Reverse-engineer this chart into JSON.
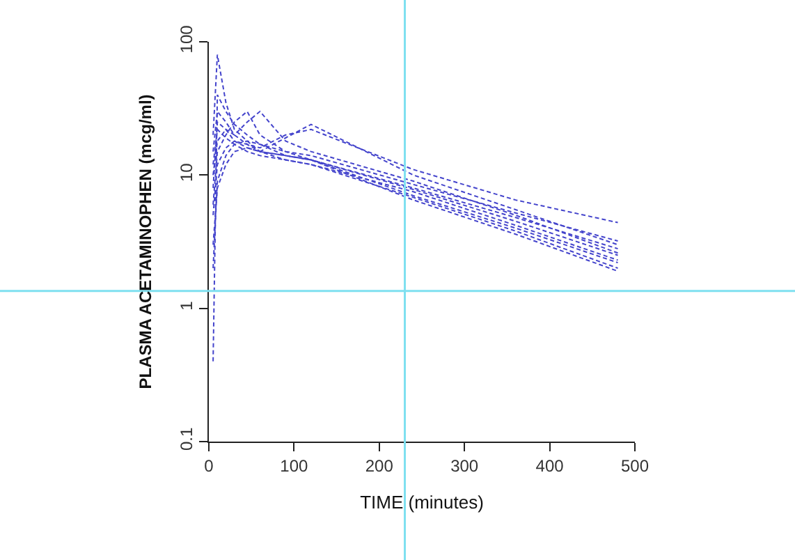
{
  "chart_data": {
    "type": "line",
    "xlabel": "TIME (minutes)",
    "ylabel": "PLASMA ACETAMINOPHEN (mcg/ml)",
    "x": [
      5,
      10,
      20,
      30,
      45,
      60,
      90,
      120,
      240,
      360,
      480
    ],
    "log": "y",
    "xlim": [
      0,
      500
    ],
    "ylim": [
      0.1,
      100
    ],
    "xticks": [
      0,
      100,
      200,
      300,
      400,
      500
    ],
    "yticks": [
      {
        "value": 0.1,
        "label": "0.1"
      },
      1,
      10,
      100
    ],
    "marker": "none",
    "line_style": "dashed",
    "series": [
      {
        "color": "#4444cc",
        "values": [
          20,
          80,
          35,
          22,
          18,
          15,
          13,
          12,
          7.5,
          4.2,
          2.3
        ]
      },
      {
        "color": "#4444cc",
        "values": [
          0.4,
          40,
          30,
          24,
          20,
          17,
          14,
          13,
          8,
          4.8,
          2.8
        ]
      },
      {
        "color": "#4444cc",
        "values": [
          8,
          25,
          22,
          20,
          25,
          30,
          18,
          15,
          9,
          5,
          2.6
        ]
      },
      {
        "color": "#4444cc",
        "values": [
          5,
          12,
          16,
          18,
          17,
          16,
          20,
          22,
          11,
          6.5,
          4.4
        ]
      },
      {
        "color": "#4444cc",
        "values": [
          15,
          30,
          25,
          20,
          17,
          15,
          14,
          13,
          7,
          4,
          2.2
        ]
      },
      {
        "color": "#4444cc",
        "values": [
          3,
          8,
          12,
          15,
          16,
          15,
          14,
          13,
          7.8,
          4.5,
          2.5
        ]
      },
      {
        "color": "#4444cc",
        "values": [
          10,
          18,
          22,
          18,
          16,
          15,
          19,
          24,
          10,
          5.5,
          3.0
        ]
      },
      {
        "color": "#4444cc",
        "values": [
          6,
          15,
          20,
          25,
          30,
          20,
          15,
          13,
          6.5,
          3.6,
          1.9
        ]
      },
      {
        "color": "#4444cc",
        "values": [
          2,
          9,
          14,
          17,
          18,
          17,
          15,
          14,
          8.5,
          5.2,
          3.2
        ]
      },
      {
        "color": "#4444cc",
        "values": [
          12,
          22,
          19,
          17,
          15,
          14,
          13,
          12,
          6.8,
          3.8,
          2.0
        ]
      }
    ],
    "ref_lines": [
      {
        "axis": "x",
        "value": 230,
        "color": "#7fe0f0"
      },
      {
        "axis": "y",
        "value": 1.35,
        "color": "#7fe0f0"
      }
    ]
  }
}
